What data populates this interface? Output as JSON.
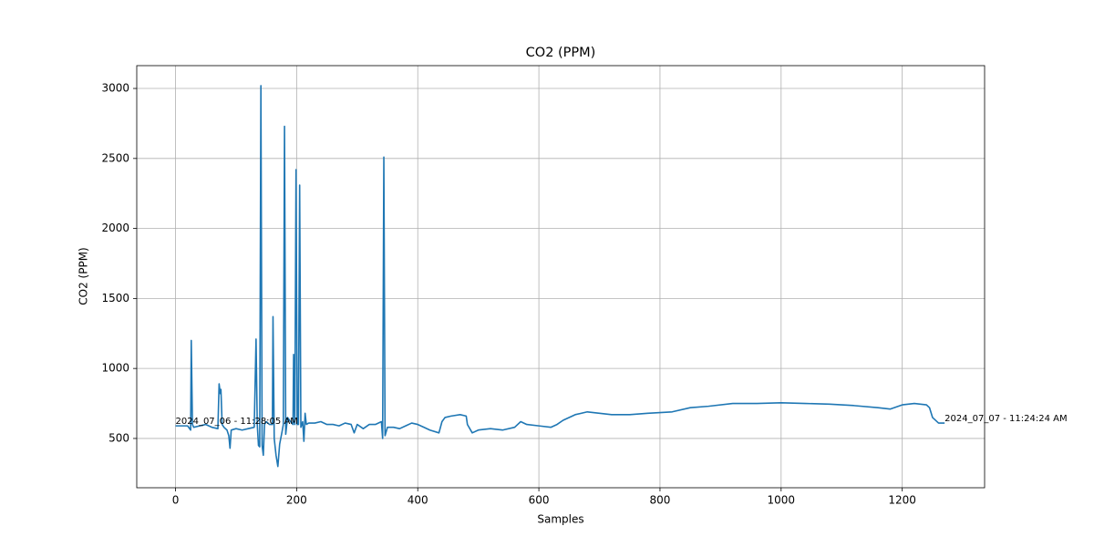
{
  "chart_data": {
    "type": "line",
    "title": "CO2 (PPM)",
    "x_label": "Samples",
    "y_label": "CO2 (PPM)",
    "x": [
      0,
      20,
      25,
      26,
      28,
      30,
      40,
      50,
      60,
      70,
      72,
      74,
      75,
      77,
      80,
      85,
      88,
      90,
      92,
      100,
      110,
      120,
      130,
      133,
      135,
      137,
      139,
      141,
      143,
      145,
      147,
      150,
      155,
      160,
      161,
      163,
      166,
      169,
      172,
      176,
      178,
      180,
      182,
      185,
      190,
      194,
      195,
      197,
      199,
      201,
      203,
      205,
      207,
      210,
      212,
      214,
      216,
      220,
      230,
      240,
      250,
      260,
      270,
      280,
      290,
      295,
      300,
      310,
      320,
      330,
      340,
      342,
      344,
      346,
      350,
      360,
      370,
      380,
      390,
      400,
      410,
      420,
      435,
      440,
      445,
      455,
      470,
      480,
      482,
      490,
      500,
      520,
      540,
      560,
      570,
      580,
      600,
      620,
      630,
      640,
      660,
      680,
      700,
      720,
      750,
      780,
      820,
      850,
      880,
      920,
      960,
      1000,
      1040,
      1080,
      1120,
      1160,
      1180,
      1200,
      1220,
      1240,
      1245,
      1250,
      1260,
      1270
    ],
    "values": [
      590,
      590,
      560,
      1200,
      600,
      580,
      590,
      600,
      580,
      570,
      890,
      820,
      850,
      600,
      580,
      560,
      520,
      430,
      560,
      570,
      560,
      570,
      580,
      1210,
      600,
      450,
      440,
      3020,
      450,
      380,
      600,
      620,
      600,
      600,
      1370,
      500,
      380,
      300,
      460,
      550,
      600,
      2730,
      530,
      650,
      620,
      600,
      1100,
      600,
      2420,
      600,
      600,
      2310,
      580,
      620,
      480,
      680,
      600,
      610,
      610,
      620,
      600,
      600,
      590,
      610,
      600,
      540,
      600,
      570,
      600,
      600,
      620,
      500,
      2510,
      520,
      580,
      580,
      570,
      590,
      610,
      600,
      580,
      560,
      540,
      620,
      650,
      660,
      670,
      660,
      600,
      540,
      560,
      570,
      560,
      580,
      620,
      600,
      590,
      580,
      600,
      630,
      670,
      690,
      680,
      670,
      670,
      680,
      690,
      720,
      730,
      750,
      750,
      755,
      750,
      745,
      735,
      720,
      710,
      740,
      750,
      740,
      720,
      650,
      610,
      610
    ],
    "color": "#1f77b4",
    "annotations": [
      "2024_07_06 - 11:28:05 AM",
      "2024_07_07 - 11:24:24 AM"
    ],
    "xlim": [
      -64,
      1336
    ],
    "ylim": [
      148,
      3163
    ],
    "xticks": [
      0,
      200,
      400,
      600,
      800,
      1000,
      1200
    ],
    "yticks": [
      500,
      1000,
      1500,
      2000,
      2500,
      3000
    ],
    "grid": true
  }
}
